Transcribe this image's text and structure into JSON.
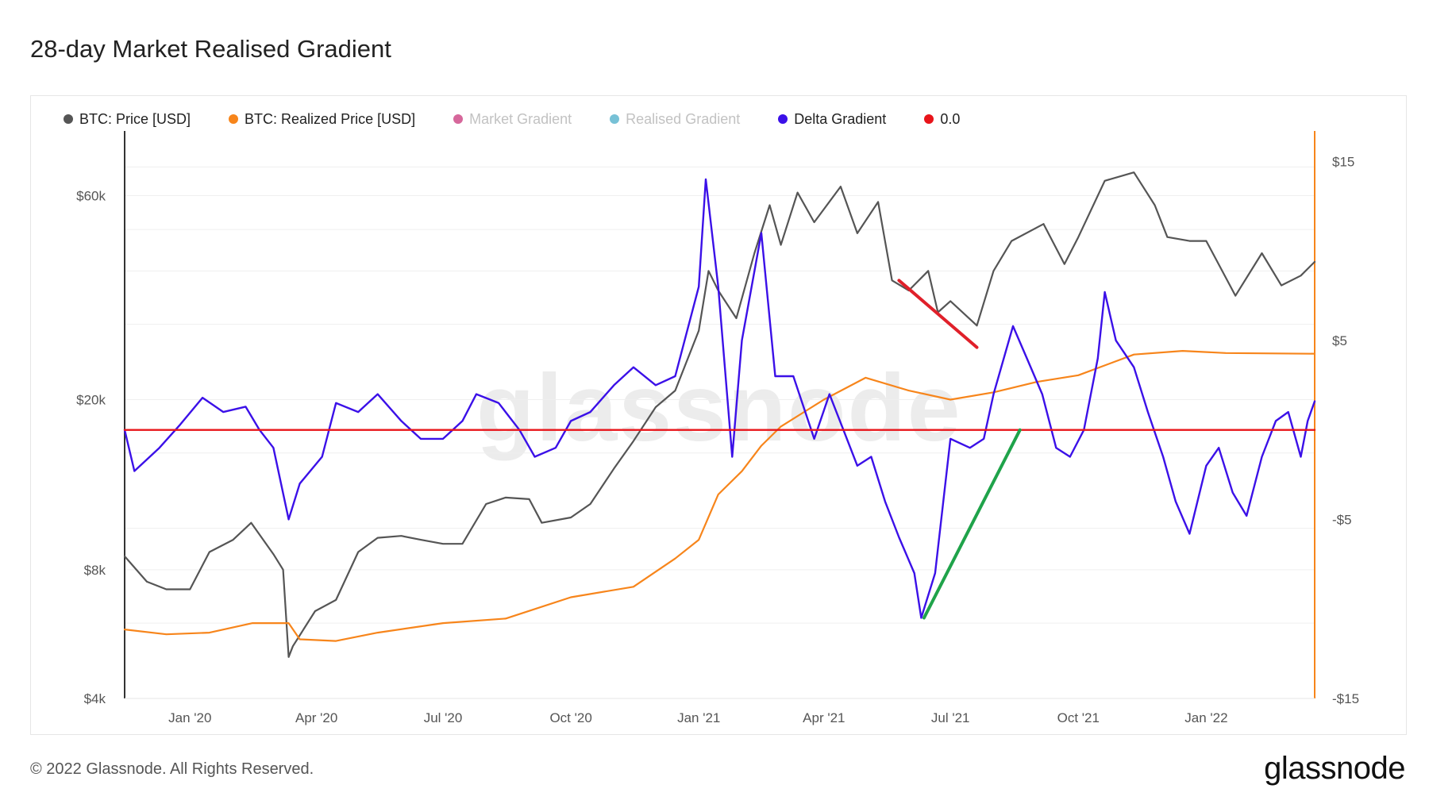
{
  "title": "28-day Market Realised Gradient",
  "footer": {
    "copyright": "© 2022 Glassnode. All Rights Reserved.",
    "logo": "glassnode"
  },
  "watermark": "glassnode",
  "legend": [
    {
      "label": "BTC: Price [USD]",
      "color": "#555555",
      "muted": false
    },
    {
      "label": "BTC: Realized Price [USD]",
      "color": "#f7851b",
      "muted": false
    },
    {
      "label": "Market Gradient",
      "color": "#d6679b",
      "muted": true
    },
    {
      "label": "Realised Gradient",
      "color": "#77c1d6",
      "muted": true
    },
    {
      "label": "Delta Gradient",
      "color": "#3b10e8",
      "muted": false
    },
    {
      "label": "0.0",
      "color": "#e8141a",
      "muted": false
    }
  ],
  "chart_data": {
    "type": "line",
    "x_tick_labels": [
      "Jan '20",
      "Apr '20",
      "Jul '20",
      "Oct '20",
      "Jan '21",
      "Apr '21",
      "Jul '21",
      "Oct '21",
      "Jan '22"
    ],
    "x_tick_dates": [
      "2020-01-01",
      "2020-04-01",
      "2020-07-01",
      "2020-10-01",
      "2021-01-01",
      "2021-04-01",
      "2021-07-01",
      "2021-10-01",
      "2022-01-01"
    ],
    "x_range": [
      "2019-11-15",
      "2022-03-20"
    ],
    "y_left": {
      "scale": "log",
      "ticks": [
        "$4k",
        "$8k",
        "$20k",
        "$60k"
      ],
      "tick_values": [
        4000,
        8000,
        20000,
        60000
      ],
      "range": [
        4000,
        85000
      ]
    },
    "y_right": {
      "scale": "linear",
      "ticks": [
        "$15",
        "$5",
        "-$5",
        "-$15"
      ],
      "tick_values": [
        15,
        5,
        -5,
        -15
      ],
      "range": [
        -15,
        16.7
      ]
    },
    "grid": "horizontal",
    "legend_position": "top-left",
    "series": [
      {
        "name": "BTC: Price [USD]",
        "axis": "left",
        "color": "#555555",
        "points": [
          [
            "2019-11-15",
            8600
          ],
          [
            "2019-12-01",
            7500
          ],
          [
            "2019-12-15",
            7200
          ],
          [
            "2020-01-01",
            7200
          ],
          [
            "2020-01-15",
            8800
          ],
          [
            "2020-02-01",
            9400
          ],
          [
            "2020-02-14",
            10300
          ],
          [
            "2020-03-01",
            8700
          ],
          [
            "2020-03-08",
            8000
          ],
          [
            "2020-03-12",
            5000
          ],
          [
            "2020-03-15",
            5300
          ],
          [
            "2020-03-31",
            6400
          ],
          [
            "2020-04-15",
            6800
          ],
          [
            "2020-05-01",
            8800
          ],
          [
            "2020-05-15",
            9500
          ],
          [
            "2020-06-01",
            9600
          ],
          [
            "2020-06-15",
            9400
          ],
          [
            "2020-07-01",
            9200
          ],
          [
            "2020-07-15",
            9200
          ],
          [
            "2020-08-01",
            11400
          ],
          [
            "2020-08-15",
            11800
          ],
          [
            "2020-09-01",
            11700
          ],
          [
            "2020-09-10",
            10300
          ],
          [
            "2020-10-01",
            10600
          ],
          [
            "2020-10-15",
            11400
          ],
          [
            "2020-11-01",
            13800
          ],
          [
            "2020-11-15",
            16000
          ],
          [
            "2020-12-01",
            19200
          ],
          [
            "2020-12-15",
            21000
          ],
          [
            "2021-01-01",
            29000
          ],
          [
            "2021-01-08",
            40000
          ],
          [
            "2021-01-15",
            36000
          ],
          [
            "2021-01-28",
            31000
          ],
          [
            "2021-02-10",
            44000
          ],
          [
            "2021-02-21",
            57000
          ],
          [
            "2021-03-01",
            46000
          ],
          [
            "2021-03-13",
            61000
          ],
          [
            "2021-03-25",
            52000
          ],
          [
            "2021-04-13",
            63000
          ],
          [
            "2021-04-25",
            49000
          ],
          [
            "2021-05-10",
            58000
          ],
          [
            "2021-05-20",
            38000
          ],
          [
            "2021-06-01",
            36000
          ],
          [
            "2021-06-15",
            40000
          ],
          [
            "2021-06-22",
            32000
          ],
          [
            "2021-07-01",
            34000
          ],
          [
            "2021-07-20",
            29800
          ],
          [
            "2021-08-01",
            40000
          ],
          [
            "2021-08-14",
            47000
          ],
          [
            "2021-09-06",
            51500
          ],
          [
            "2021-09-21",
            41500
          ],
          [
            "2021-10-01",
            48000
          ],
          [
            "2021-10-20",
            65000
          ],
          [
            "2021-11-10",
            68000
          ],
          [
            "2021-11-25",
            57000
          ],
          [
            "2021-12-04",
            48000
          ],
          [
            "2021-12-20",
            47000
          ],
          [
            "2022-01-01",
            47000
          ],
          [
            "2022-01-22",
            35000
          ],
          [
            "2022-02-10",
            44000
          ],
          [
            "2022-02-24",
            37000
          ],
          [
            "2022-03-10",
            39000
          ],
          [
            "2022-03-20",
            42000
          ]
        ]
      },
      {
        "name": "BTC: Realized Price [USD]",
        "axis": "left",
        "color": "#f7851b",
        "points": [
          [
            "2019-11-15",
            5800
          ],
          [
            "2019-12-15",
            5650
          ],
          [
            "2020-01-15",
            5700
          ],
          [
            "2020-02-15",
            6000
          ],
          [
            "2020-03-12",
            6000
          ],
          [
            "2020-03-20",
            5500
          ],
          [
            "2020-04-15",
            5450
          ],
          [
            "2020-05-15",
            5700
          ],
          [
            "2020-07-01",
            6000
          ],
          [
            "2020-08-15",
            6150
          ],
          [
            "2020-10-01",
            6900
          ],
          [
            "2020-11-15",
            7300
          ],
          [
            "2020-12-15",
            8500
          ],
          [
            "2021-01-01",
            9400
          ],
          [
            "2021-01-15",
            12000
          ],
          [
            "2021-02-01",
            13600
          ],
          [
            "2021-02-15",
            15600
          ],
          [
            "2021-03-01",
            17300
          ],
          [
            "2021-04-01",
            20000
          ],
          [
            "2021-05-01",
            22500
          ],
          [
            "2021-06-01",
            21000
          ],
          [
            "2021-07-01",
            20000
          ],
          [
            "2021-08-01",
            20800
          ],
          [
            "2021-09-01",
            22000
          ],
          [
            "2021-10-01",
            22800
          ],
          [
            "2021-11-10",
            25500
          ],
          [
            "2021-12-15",
            26000
          ],
          [
            "2022-01-15",
            25700
          ],
          [
            "2022-03-20",
            25600
          ]
        ]
      },
      {
        "name": "Delta Gradient",
        "axis": "right",
        "color": "#3b10e8",
        "points": [
          [
            "2019-11-15",
            0
          ],
          [
            "2019-11-22",
            -2.3
          ],
          [
            "2019-12-10",
            -1
          ],
          [
            "2019-12-25",
            0.3
          ],
          [
            "2020-01-10",
            1.8
          ],
          [
            "2020-01-25",
            1
          ],
          [
            "2020-02-10",
            1.3
          ],
          [
            "2020-02-20",
            0
          ],
          [
            "2020-03-01",
            -1
          ],
          [
            "2020-03-12",
            -5
          ],
          [
            "2020-03-20",
            -3
          ],
          [
            "2020-04-05",
            -1.5
          ],
          [
            "2020-04-15",
            1.5
          ],
          [
            "2020-05-01",
            1
          ],
          [
            "2020-05-15",
            2
          ],
          [
            "2020-06-01",
            0.5
          ],
          [
            "2020-06-15",
            -0.5
          ],
          [
            "2020-07-01",
            -0.5
          ],
          [
            "2020-07-15",
            0.5
          ],
          [
            "2020-07-25",
            2
          ],
          [
            "2020-08-10",
            1.5
          ],
          [
            "2020-08-25",
            0
          ],
          [
            "2020-09-05",
            -1.5
          ],
          [
            "2020-09-20",
            -1
          ],
          [
            "2020-10-01",
            0.5
          ],
          [
            "2020-10-15",
            1
          ],
          [
            "2020-11-01",
            2.5
          ],
          [
            "2020-11-15",
            3.5
          ],
          [
            "2020-12-01",
            2.5
          ],
          [
            "2020-12-15",
            3
          ],
          [
            "2021-01-01",
            8
          ],
          [
            "2021-01-06",
            14
          ],
          [
            "2021-01-15",
            8
          ],
          [
            "2021-01-25",
            -1.5
          ],
          [
            "2021-02-01",
            5
          ],
          [
            "2021-02-15",
            11
          ],
          [
            "2021-02-25",
            3
          ],
          [
            "2021-03-10",
            3
          ],
          [
            "2021-03-25",
            -0.5
          ],
          [
            "2021-04-05",
            2
          ],
          [
            "2021-04-15",
            0
          ],
          [
            "2021-04-25",
            -2
          ],
          [
            "2021-05-05",
            -1.5
          ],
          [
            "2021-05-15",
            -4
          ],
          [
            "2021-05-25",
            -6
          ],
          [
            "2021-06-05",
            -8
          ],
          [
            "2021-06-10",
            -10.5
          ],
          [
            "2021-06-20",
            -8
          ],
          [
            "2021-07-01",
            -0.5
          ],
          [
            "2021-07-15",
            -1
          ],
          [
            "2021-07-25",
            -0.5
          ],
          [
            "2021-08-01",
            2
          ],
          [
            "2021-08-15",
            5.8
          ],
          [
            "2021-08-25",
            4
          ],
          [
            "2021-09-05",
            2
          ],
          [
            "2021-09-15",
            -1
          ],
          [
            "2021-09-25",
            -1.5
          ],
          [
            "2021-10-05",
            0
          ],
          [
            "2021-10-15",
            4
          ],
          [
            "2021-10-20",
            7.7
          ],
          [
            "2021-10-28",
            5
          ],
          [
            "2021-11-10",
            3.5
          ],
          [
            "2021-11-20",
            1
          ],
          [
            "2021-12-01",
            -1.5
          ],
          [
            "2021-12-10",
            -4
          ],
          [
            "2021-12-20",
            -5.8
          ],
          [
            "2022-01-01",
            -2
          ],
          [
            "2022-01-10",
            -1
          ],
          [
            "2022-01-20",
            -3.5
          ],
          [
            "2022-01-30",
            -4.8
          ],
          [
            "2022-02-10",
            -1.5
          ],
          [
            "2022-02-20",
            0.5
          ],
          [
            "2022-03-01",
            1
          ],
          [
            "2022-03-10",
            -1.5
          ],
          [
            "2022-03-15",
            0.5
          ],
          [
            "2022-03-20",
            1.6
          ]
        ]
      },
      {
        "name": "0.0",
        "axis": "right",
        "color": "#e8141a",
        "points": [
          [
            "2019-11-15",
            0
          ],
          [
            "2022-03-20",
            0
          ]
        ]
      }
    ],
    "annotations": [
      {
        "kind": "trendline",
        "color": "#e0202a",
        "axis": "left",
        "from": [
          "2021-05-25",
          38000
        ],
        "to": [
          "2021-07-20",
          26500
        ]
      },
      {
        "kind": "trendline",
        "color": "#1fa34a",
        "axis": "right",
        "from": [
          "2021-06-12",
          -10.5
        ],
        "to": [
          "2021-08-20",
          0
        ]
      }
    ]
  }
}
